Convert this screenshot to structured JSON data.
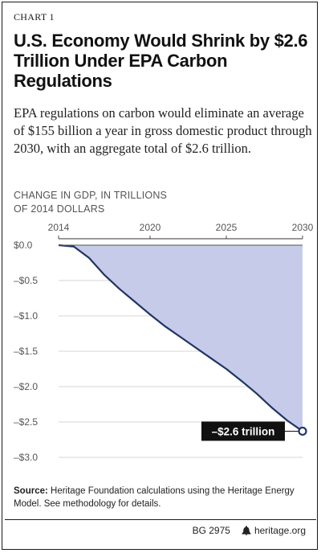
{
  "header": {
    "label": "CHART 1",
    "title": "U.S. Economy Would Shrink by $2.6 Trillion Under EPA Carbon Regulations",
    "subtitle": "EPA regulations on carbon would eliminate an average of $155 billion a year in gross domestic product through 2030, with an aggregate total of $2.6 trillion."
  },
  "axis_title_lines": [
    "CHANGE IN GDP, IN TRILLIONS",
    "OF 2014 DOLLARS"
  ],
  "footer": {
    "source_label": "Source:",
    "source_text": "Heritage Foundation calculations using the Heritage Energy Model. See methodology for details.",
    "doc_id": "BG 2975",
    "site": "heritage.org"
  },
  "colors": {
    "area_fill": "#c5cbe8",
    "line": "#1f3468",
    "gridline": "#d4d4d4",
    "callout_bg": "#111111",
    "callout_text": "#ffffff"
  },
  "chart_data": {
    "type": "area",
    "ylabel": "CHANGE IN GDP, IN TRILLIONS OF 2014 DOLLARS",
    "xlim": [
      2014,
      2030
    ],
    "ylim": [
      -3.0,
      0.0
    ],
    "x_ticks": [
      2014,
      2020,
      2025,
      2030
    ],
    "y_ticks": [
      0.0,
      -0.5,
      -1.0,
      -1.5,
      -2.0,
      -2.5,
      -3.0
    ],
    "y_tick_labels": [
      "$0.0",
      "–$0.5",
      "–$1.0",
      "–$1.5",
      "–$2.0",
      "–$2.5",
      "–$3.0"
    ],
    "grid": true,
    "series": [
      {
        "x": [
          2014,
          2015,
          2016,
          2017,
          2018,
          2019,
          2020,
          2021,
          2022,
          2023,
          2024,
          2025,
          2026,
          2027,
          2028,
          2029,
          2030
        ],
        "values": [
          0.0,
          -0.02,
          -0.18,
          -0.42,
          -0.62,
          -0.8,
          -0.98,
          -1.15,
          -1.3,
          -1.45,
          -1.6,
          -1.75,
          -1.92,
          -2.1,
          -2.3,
          -2.48,
          -2.63
        ]
      }
    ],
    "annotations": [
      {
        "x": 2030,
        "y": -2.63,
        "text": "–$2.6 trillion"
      }
    ]
  }
}
